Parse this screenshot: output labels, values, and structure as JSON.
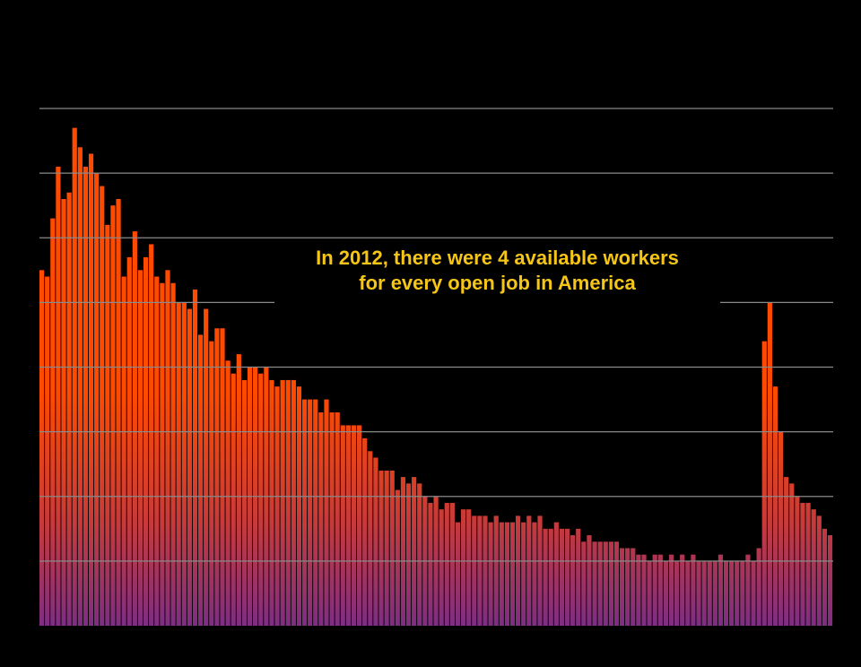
{
  "colors": {
    "background": "#000000",
    "gridline": "#8a8a8a",
    "bar_top": "#ff4a00",
    "bar_mid": "#e8462a",
    "bar_bottom": "#7e2d83",
    "annotation_text": "#f5c518"
  },
  "annotation": {
    "line1": "In 2012, there were 4 available workers",
    "line2": "for every open job in America"
  },
  "chart_data": {
    "type": "bar",
    "title": "",
    "xlabel": "",
    "ylabel": "",
    "ylim": [
      0,
      8
    ],
    "grid_lines": [
      1,
      2,
      3,
      4,
      5,
      6,
      7,
      8
    ],
    "grid": true,
    "values": [
      5.5,
      5.4,
      6.3,
      7.1,
      6.6,
      6.7,
      7.7,
      7.4,
      7.1,
      7.3,
      7.0,
      6.8,
      6.2,
      6.5,
      6.6,
      5.4,
      5.7,
      6.1,
      5.5,
      5.7,
      5.9,
      5.4,
      5.3,
      5.5,
      5.3,
      5.0,
      5.0,
      4.9,
      5.2,
      4.5,
      4.9,
      4.4,
      4.6,
      4.6,
      4.1,
      3.9,
      4.2,
      3.8,
      4.0,
      4.0,
      3.9,
      4.0,
      3.8,
      3.7,
      3.8,
      3.8,
      3.8,
      3.7,
      3.5,
      3.5,
      3.5,
      3.3,
      3.5,
      3.3,
      3.3,
      3.1,
      3.1,
      3.1,
      3.1,
      2.9,
      2.7,
      2.6,
      2.4,
      2.4,
      2.4,
      2.1,
      2.3,
      2.2,
      2.3,
      2.2,
      2.0,
      1.9,
      2.0,
      1.8,
      1.9,
      1.9,
      1.6,
      1.8,
      1.8,
      1.7,
      1.7,
      1.7,
      1.6,
      1.7,
      1.6,
      1.6,
      1.6,
      1.7,
      1.6,
      1.7,
      1.6,
      1.7,
      1.5,
      1.5,
      1.6,
      1.5,
      1.5,
      1.4,
      1.5,
      1.3,
      1.4,
      1.3,
      1.3,
      1.3,
      1.3,
      1.3,
      1.2,
      1.2,
      1.2,
      1.1,
      1.1,
      1.0,
      1.1,
      1.1,
      1.0,
      1.1,
      1.0,
      1.1,
      1.0,
      1.1,
      1.0,
      1.0,
      1.0,
      1.0,
      1.1,
      1.0,
      1.0,
      1.0,
      1.0,
      1.1,
      1.0,
      1.2,
      4.4,
      5.0,
      3.7,
      3.0,
      2.3,
      2.2,
      2.0,
      1.9,
      1.9,
      1.8,
      1.7,
      1.5,
      1.4
    ]
  }
}
